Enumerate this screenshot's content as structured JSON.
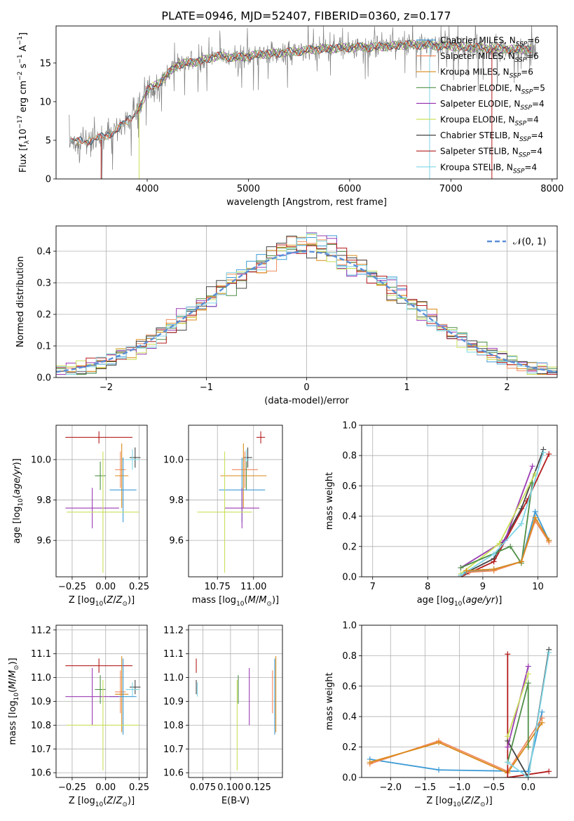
{
  "title": "PLATE=0946, MJD=52407, FIBERID=0360, z=0.177",
  "colors": {
    "Chabrier MILES": "#3d9bd6",
    "Salpeter MILES": "#f08a5d",
    "Kroupa MILES": "#d98a1a",
    "Chabrier ELODIE": "#4f8f47",
    "Salpeter ELODIE": "#9b3bb3",
    "Kroupa ELODIE": "#c9e05a",
    "Chabrier STELIB": "#444444",
    "Salpeter STELIB": "#b31b1b",
    "Kroupa STELIB": "#7fd6e6",
    "data": "#7f7f7f",
    "gauss": "#5b8fd8"
  },
  "chart_data": [
    {
      "id": "spectrum",
      "type": "line",
      "xlabel": "wavelength [Angstrom, rest frame]",
      "ylabel": "Flux [f_λ 10^-17 erg cm^-2 s^-1 A^-1]",
      "xlim": [
        3100,
        8050
      ],
      "ylim": [
        0,
        19.8
      ],
      "xticks": [
        4000,
        5000,
        6000,
        7000,
        8000
      ],
      "yticks": [
        0,
        5,
        10,
        15
      ],
      "legend_position": "upper-right",
      "series": [
        {
          "name": "Chabrier MILES, N_SSP=6"
        },
        {
          "name": "Salpeter MILES, N_SSP=6"
        },
        {
          "name": "Kroupa MILES, N_SSP=6"
        },
        {
          "name": "Chabrier ELODIE, N_SSP=5"
        },
        {
          "name": "Salpeter ELODIE, N_SSP=4"
        },
        {
          "name": "Kroupa ELODIE, N_SSP=4"
        },
        {
          "name": "Chabrier STELIB, N_SSP=4"
        },
        {
          "name": "Salpeter STELIB, N_SSP=4"
        },
        {
          "name": "Kroupa STELIB, N_SSP=4"
        }
      ],
      "continuum": {
        "x": [
          3250,
          3500,
          3700,
          3850,
          3950,
          4000,
          4100,
          4200,
          4300,
          4500,
          4700,
          4900,
          5100,
          5400,
          5700,
          6000,
          6300,
          6600,
          7000,
          7400,
          7800
        ],
        "y": [
          4.8,
          5.1,
          6.3,
          8.1,
          9.8,
          11.5,
          12.3,
          13.5,
          14.8,
          15.2,
          15.9,
          15.7,
          16.1,
          16.4,
          16.8,
          17.0,
          17.1,
          17.4,
          17.2,
          16.9,
          16.7
        ]
      }
    },
    {
      "id": "residuals",
      "type": "histogram",
      "xlabel": "(data-model)/error",
      "ylabel": "Normed distribution",
      "xlim": [
        -2.5,
        2.5
      ],
      "ylim": [
        0,
        0.48
      ],
      "xticks": [
        -2,
        -1,
        0,
        1,
        2
      ],
      "yticks": [
        0.0,
        0.1,
        0.2,
        0.3,
        0.4
      ],
      "legend": "𝒩(0, 1)",
      "legend_position": "upper-right",
      "grid": true
    },
    {
      "id": "age-Z",
      "type": "errorbar",
      "xlabel": "Z [log10(Z/Z⊙)]",
      "ylabel": "age [log10(age/yr)]",
      "xlim": [
        -0.37,
        0.31
      ],
      "ylim": [
        9.42,
        10.17
      ],
      "xticks": [
        -0.25,
        0.0,
        0.25
      ],
      "yticks": [
        9.6,
        9.8,
        10.0
      ],
      "grid": true
    },
    {
      "id": "age-mass",
      "type": "errorbar",
      "xlabel": "mass [log10(M/M⊙)]",
      "ylabel": "",
      "xlim": [
        10.55,
        11.2
      ],
      "ylim": [
        9.42,
        10.17
      ],
      "xticks": [
        10.75,
        11.0
      ],
      "yticks": [
        9.6,
        9.8,
        10.0
      ],
      "grid": true
    },
    {
      "id": "weight-age",
      "type": "line",
      "xlabel": "age [log10(age/yr)]",
      "ylabel": "mass weight",
      "xlim": [
        6.8,
        10.35
      ],
      "ylim": [
        0,
        1.0
      ],
      "xticks": [
        7,
        8,
        9,
        10
      ],
      "yticks": [
        0.0,
        0.2,
        0.4,
        0.6,
        0.8,
        1.0
      ],
      "grid": true
    },
    {
      "id": "mass-Z",
      "type": "errorbar",
      "xlabel": "Z [log10(Z/Z⊙)]",
      "ylabel": "mass [log10(M/M⊙)]",
      "xlim": [
        -0.37,
        0.31
      ],
      "ylim": [
        10.58,
        11.22
      ],
      "xticks": [
        -0.25,
        0.0,
        0.25
      ],
      "yticks": [
        10.6,
        10.7,
        10.8,
        10.9,
        11.0,
        11.1,
        11.2
      ],
      "grid": true
    },
    {
      "id": "mass-EBV",
      "type": "errorbar",
      "xlabel": "E(B-V)",
      "ylabel": "",
      "xlim": [
        0.062,
        0.147
      ],
      "ylim": [
        10.58,
        11.22
      ],
      "xticks": [
        0.075,
        0.1,
        0.125
      ],
      "xtick_labels": [
        "0.075",
        "0.100",
        "0.125"
      ],
      "yticks": [
        10.6,
        10.7,
        10.8,
        10.9,
        11.0,
        11.1,
        11.2
      ],
      "grid": true
    },
    {
      "id": "weight-Z",
      "type": "line",
      "xlabel": "Z [log10(Z/Z⊙)]",
      "ylabel": "mass weight",
      "xlim": [
        -2.42,
        0.42
      ],
      "ylim": [
        0,
        1.0
      ],
      "xticks": [
        -2.0,
        -1.5,
        -1.0,
        -0.5,
        0.0
      ],
      "yticks": [
        0.0,
        0.2,
        0.4,
        0.6,
        0.8,
        1.0
      ],
      "grid": true
    }
  ],
  "points": {
    "age_mass_Z": [
      {
        "model": "Salpeter STELIB",
        "Z": -0.05,
        "dZ": 0.25,
        "age": 10.11,
        "dage": 0.03,
        "mass": 11.05,
        "dmass": 0.03,
        "ebv": 0.069,
        "debv": 0.02
      },
      {
        "model": "Chabrier STELIB",
        "Z": 0.22,
        "dZ": 0.04,
        "age": 10.01,
        "dage": 0.05,
        "mass": 10.96,
        "dmass": 0.03,
        "ebv": 0.069,
        "debv": 0.01
      },
      {
        "model": "Kroupa STELIB",
        "Z": 0.2,
        "dZ": 0.05,
        "age": 10.0,
        "dage": 0.05,
        "mass": 10.95,
        "dmass": 0.03,
        "ebv": 0.07,
        "debv": 0.01
      },
      {
        "model": "Salpeter MILES",
        "Z": 0.11,
        "dZ": 0.04,
        "age": 9.95,
        "dage": 0.09,
        "mass": 10.94,
        "dmass": 0.09,
        "ebv": 0.138,
        "debv": 0.01
      },
      {
        "model": "Chabrier ELODIE",
        "Z": -0.04,
        "dZ": 0.04,
        "age": 9.92,
        "dage": 0.07,
        "mass": 10.95,
        "dmass": 0.06,
        "ebv": 0.107,
        "debv": 0.01
      },
      {
        "model": "Kroupa MILES",
        "Z": 0.12,
        "dZ": 0.05,
        "age": 9.92,
        "dage": 0.16,
        "mass": 10.93,
        "dmass": 0.16,
        "ebv": 0.141,
        "debv": 0.01
      },
      {
        "model": "Chabrier MILES",
        "Z": 0.13,
        "dZ": 0.1,
        "age": 9.85,
        "dage": 0.16,
        "mass": 10.92,
        "dmass": 0.16,
        "ebv": 0.14,
        "debv": 0.02
      },
      {
        "model": "Salpeter ELODIE",
        "Z": -0.1,
        "dZ": 0.2,
        "age": 9.76,
        "dage": 0.1,
        "mass": 10.92,
        "dmass": 0.12,
        "ebv": 0.117,
        "debv": 0.02
      },
      {
        "model": "Kroupa ELODIE",
        "Z": -0.02,
        "dZ": 0.27,
        "age": 9.74,
        "dage": 0.3,
        "mass": 10.8,
        "dmass": 0.19,
        "ebv": 0.106,
        "debv": 0.02
      }
    ],
    "weight_age": [
      {
        "model": "Chabrier STELIB",
        "x": [
          8.6,
          9.2,
          9.7,
          10.1
        ],
        "y": [
          0.01,
          0.12,
          0.45,
          0.84
        ]
      },
      {
        "model": "Salpeter STELIB",
        "x": [
          8.6,
          9.2,
          9.8,
          10.2
        ],
        "y": [
          0.0,
          0.1,
          0.5,
          0.81
        ]
      },
      {
        "model": "Salpeter ELODIE",
        "x": [
          8.6,
          9.4,
          9.9
        ],
        "y": [
          0.06,
          0.24,
          0.73
        ]
      },
      {
        "model": "Kroupa ELODIE",
        "x": [
          8.6,
          9.3,
          9.95
        ],
        "y": [
          0.02,
          0.22,
          0.68
        ]
      },
      {
        "model": "Chabrier ELODIE",
        "x": [
          8.6,
          9.5,
          9.7,
          9.9
        ],
        "y": [
          0.06,
          0.2,
          0.09,
          0.62
        ]
      },
      {
        "model": "Kroupa STELIB",
        "x": [
          8.6,
          9.2,
          9.7,
          10.1
        ],
        "y": [
          0.01,
          0.15,
          0.35,
          0.82
        ]
      },
      {
        "model": "Chabrier MILES",
        "x": [
          8.7,
          9.2,
          9.7,
          9.95,
          10.2
        ],
        "y": [
          0.03,
          0.05,
          0.1,
          0.43,
          0.24
        ]
      },
      {
        "model": "Salpeter MILES",
        "x": [
          8.75,
          9.2,
          9.7,
          9.95,
          10.2
        ],
        "y": [
          0.03,
          0.04,
          0.1,
          0.37,
          0.23
        ]
      },
      {
        "model": "Kroupa MILES",
        "x": [
          8.7,
          9.2,
          9.7,
          9.95,
          10.2
        ],
        "y": [
          0.04,
          0.05,
          0.1,
          0.39,
          0.24
        ]
      }
    ],
    "weight_Z": [
      {
        "model": "Chabrier MILES",
        "x": [
          -2.3,
          -1.3,
          0.0,
          0.2
        ],
        "y": [
          0.12,
          0.05,
          0.04,
          0.43
        ]
      },
      {
        "model": "Salpeter MILES",
        "x": [
          -2.3,
          -1.3,
          -0.3,
          0.2
        ],
        "y": [
          0.09,
          0.24,
          0.04,
          0.39
        ]
      },
      {
        "model": "Kroupa MILES",
        "x": [
          -2.3,
          -1.3,
          -0.3,
          0.2
        ],
        "y": [
          0.1,
          0.23,
          0.03,
          0.36
        ]
      },
      {
        "model": "Salpeter STELIB",
        "x": [
          -0.3,
          -0.3,
          0.3
        ],
        "y": [
          0.81,
          0.0,
          0.04
        ]
      },
      {
        "model": "Chabrier STELIB",
        "x": [
          -0.3,
          0.0,
          0.3
        ],
        "y": [
          0.24,
          0.0,
          0.84
        ]
      },
      {
        "model": "Salpeter ELODIE",
        "x": [
          -0.3,
          0.0
        ],
        "y": [
          0.2,
          0.73
        ]
      },
      {
        "model": "Kroupa ELODIE",
        "x": [
          -0.3,
          0.0
        ],
        "y": [
          0.27,
          0.68
        ]
      },
      {
        "model": "Chabrier ELODIE",
        "x": [
          -0.3,
          0.0,
          0.0
        ],
        "y": [
          0.1,
          0.62,
          0.2
        ]
      },
      {
        "model": "Kroupa STELIB",
        "x": [
          -0.3,
          0.0,
          0.3
        ],
        "y": [
          0.1,
          0.0,
          0.82
        ]
      }
    ]
  }
}
